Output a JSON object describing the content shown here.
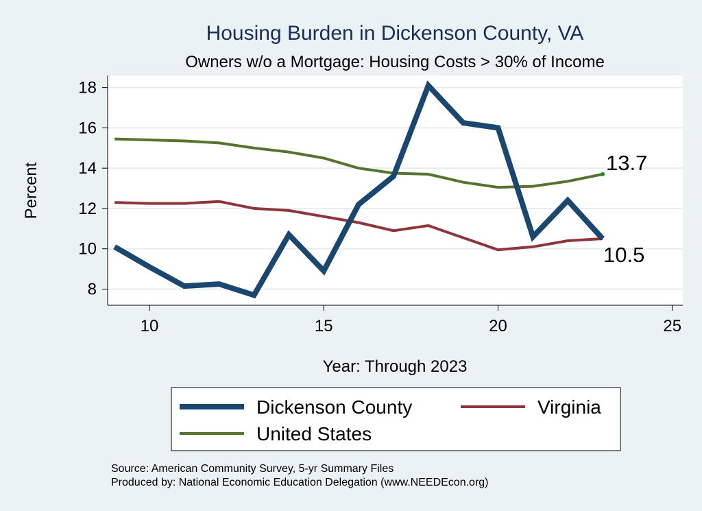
{
  "chart_data": {
    "type": "line",
    "title": "Housing Burden in Dickenson County, VA",
    "subtitle": "Owners w/o a Mortgage: Housing Costs > 30% of Income",
    "xlabel": "Year: Through 2023",
    "ylabel": "Percent",
    "xlim": [
      8.8,
      25.3
    ],
    "ylim": [
      7.2,
      18.6
    ],
    "xticks": [
      10,
      15,
      20,
      25
    ],
    "yticks": [
      8,
      10,
      12,
      14,
      16,
      18
    ],
    "grid": true,
    "legend_position": "bottom",
    "x": [
      9,
      10,
      11,
      12,
      13,
      14,
      15,
      16,
      17,
      18,
      19,
      20,
      21,
      22,
      23
    ],
    "series": [
      {
        "name": "Dickenson County",
        "color": "#1a476f",
        "values": [
          10.1,
          9.1,
          8.15,
          8.25,
          7.7,
          10.7,
          8.9,
          12.2,
          13.6,
          18.1,
          16.25,
          16.0,
          10.6,
          12.4,
          10.5
        ]
      },
      {
        "name": "Virginia",
        "color": "#90353b",
        "values": [
          12.3,
          12.25,
          12.25,
          12.35,
          12.0,
          11.9,
          11.6,
          11.3,
          10.9,
          11.15,
          10.55,
          9.95,
          10.1,
          10.4,
          10.5
        ]
      },
      {
        "name": "United States",
        "color": "#55752f",
        "values": [
          15.45,
          15.4,
          15.35,
          15.25,
          15.0,
          14.8,
          14.5,
          14.0,
          13.75,
          13.7,
          13.3,
          13.05,
          13.1,
          13.35,
          13.7
        ]
      }
    ],
    "end_labels": {
      "us": "13.7",
      "county": "10.5"
    }
  },
  "source_lines": [
    "Source: American Community Survey, 5-yr Summary Files",
    "Produced by: National Economic Education Delegation (www.NEEDEcon.org)"
  ]
}
